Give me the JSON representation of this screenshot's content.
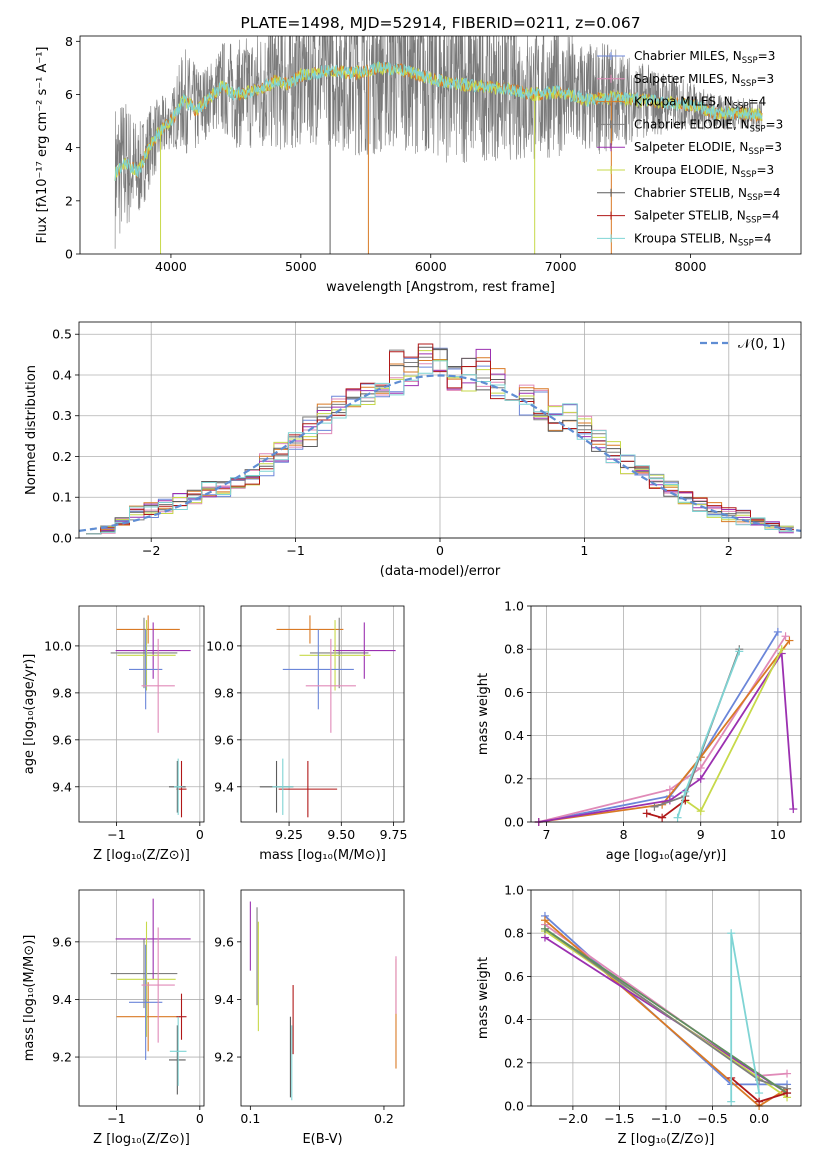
{
  "chart_data": [
    {
      "type": "line",
      "title": "PLATE=1498, MJD=52914, FIBERID=0211, z=0.067",
      "xlabel": "wavelength [Angstrom, rest frame]",
      "ylabel": "Flux [fλ10⁻¹⁷ erg cm⁻² s⁻¹ A⁻¹]",
      "xlim": [
        3300,
        8850
      ],
      "ylim": [
        0,
        8.2
      ],
      "xticks": [
        "4000",
        "5000",
        "6000",
        "7000",
        "8000"
      ],
      "yticks": [
        "0",
        "2",
        "4",
        "6",
        "8"
      ],
      "grid": false,
      "legend_position": "top-right",
      "legend": [
        "Chabrier MILES, N_SSP=3",
        "Salpeter MILES, N_SSP=3",
        "Kroupa MILES, N_SSP=4",
        "Chabrier ELODIE, N_SSP=3",
        "Salpeter ELODIE, N_SSP=3",
        "Kroupa ELODIE, N_SSP=3",
        "Chabrier STELIB, N_SSP=4",
        "Salpeter STELIB, N_SSP=4",
        "Kroupa STELIB, N_SSP=4"
      ],
      "data": {
        "x": [
          3570,
          3650,
          3750,
          3850,
          3950,
          4000,
          4100,
          4200,
          4300,
          4400,
          4500,
          4600,
          4700,
          4800,
          4900,
          5000,
          5200,
          5400,
          5600,
          5800,
          6000,
          6200,
          6400,
          6600,
          6800,
          7000,
          7200,
          7400,
          7600,
          7800,
          8000,
          8200,
          8400,
          8550
        ],
        "model": [
          3.0,
          3.4,
          3.1,
          4.2,
          4.8,
          5.0,
          5.8,
          5.4,
          5.9,
          6.3,
          6.0,
          6.1,
          6.2,
          6.5,
          6.4,
          6.7,
          6.9,
          6.8,
          7.0,
          6.9,
          6.6,
          6.4,
          6.3,
          6.2,
          6.0,
          6.1,
          5.8,
          5.9,
          5.8,
          5.7,
          5.6,
          5.3,
          5.3,
          5.2
        ],
        "observed_band": [
          2.8,
          2.6,
          1.8,
          1.5,
          1.2,
          1.0,
          2.0,
          1.7,
          1.3,
          1.8,
          2.0,
          2.2,
          2.4,
          2.6,
          2.7,
          2.6,
          2.8,
          3.1,
          3.3,
          3.0,
          3.0,
          3.1,
          2.8,
          2.7,
          2.6,
          2.4,
          2.2,
          2.0,
          1.5,
          1.2,
          0.9,
          0.7,
          0.6,
          0.6
        ]
      }
    },
    {
      "type": "line",
      "xlabel": "(data-model)/error",
      "ylabel": "Normed distribution",
      "xlim": [
        -2.5,
        2.5
      ],
      "ylim": [
        0,
        0.53
      ],
      "xticks": [
        "−2",
        "−1",
        "0",
        "1",
        "2"
      ],
      "yticks": [
        "0.0",
        "0.1",
        "0.2",
        "0.3",
        "0.4",
        "0.5"
      ],
      "grid": true,
      "legend_position": "top-right",
      "legend": [
        "𝒩(0, 1)"
      ],
      "data": {
        "bin_centers": [
          -2.4,
          -2.3,
          -2.2,
          -2.1,
          -2.0,
          -1.9,
          -1.8,
          -1.7,
          -1.6,
          -1.5,
          -1.4,
          -1.3,
          -1.2,
          -1.1,
          -1.0,
          -0.9,
          -0.8,
          -0.7,
          -0.6,
          -0.5,
          -0.4,
          -0.3,
          -0.2,
          -0.1,
          0.0,
          0.1,
          0.2,
          0.3,
          0.4,
          0.5,
          0.6,
          0.7,
          0.8,
          0.9,
          1.0,
          1.1,
          1.2,
          1.3,
          1.4,
          1.5,
          1.6,
          1.7,
          1.8,
          1.9,
          2.0,
          2.1,
          2.2,
          2.3,
          2.4
        ],
        "hist": [
          0.02,
          0.02,
          0.04,
          0.06,
          0.07,
          0.08,
          0.09,
          0.1,
          0.12,
          0.12,
          0.13,
          0.15,
          0.18,
          0.21,
          0.23,
          0.26,
          0.29,
          0.32,
          0.34,
          0.35,
          0.37,
          0.4,
          0.41,
          0.44,
          0.43,
          0.39,
          0.4,
          0.41,
          0.38,
          0.37,
          0.34,
          0.33,
          0.3,
          0.29,
          0.27,
          0.24,
          0.21,
          0.18,
          0.16,
          0.14,
          0.12,
          0.1,
          0.08,
          0.07,
          0.06,
          0.05,
          0.04,
          0.03,
          0.02
        ],
        "hist_spread": [
          0.01,
          0.01,
          0.01,
          0.02,
          0.02,
          0.02,
          0.02,
          0.02,
          0.02,
          0.02,
          0.02,
          0.02,
          0.03,
          0.03,
          0.04,
          0.04,
          0.04,
          0.04,
          0.03,
          0.03,
          0.04,
          0.07,
          0.04,
          0.04,
          0.04,
          0.04,
          0.05,
          0.06,
          0.04,
          0.04,
          0.04,
          0.04,
          0.04,
          0.04,
          0.03,
          0.03,
          0.03,
          0.03,
          0.02,
          0.02,
          0.02,
          0.02,
          0.02,
          0.02,
          0.02,
          0.02,
          0.01,
          0.01,
          0.01
        ],
        "normal": {
          "mu": 0,
          "sigma": 1
        }
      }
    },
    {
      "type": "scatter",
      "xlabel": "Z [log₁₀(Z/Z⊙)]",
      "ylabel": "age  [log₁₀(age/yr)]",
      "xlim": [
        -1.45,
        0.05
      ],
      "ylim": [
        9.25,
        10.17
      ],
      "xticks": [
        "−1",
        "0"
      ],
      "yticks": [
        "9.4",
        "9.6",
        "9.8",
        "10.0"
      ],
      "grid": true,
      "points": [
        {
          "x": -0.62,
          "y": 10.07,
          "xerr": 0.38,
          "yerr": 0.06,
          "color": "#d97a25"
        },
        {
          "x": -0.67,
          "y": 9.97,
          "xerr": 0.4,
          "yerr": 0.15,
          "color": "#7f7f7f"
        },
        {
          "x": -0.56,
          "y": 9.98,
          "xerr": 0.45,
          "yerr": 0.12,
          "color": "#9b30b0"
        },
        {
          "x": -0.64,
          "y": 9.96,
          "xerr": 0.35,
          "yerr": 0.15,
          "color": "#c7d94a"
        },
        {
          "x": -0.65,
          "y": 9.9,
          "xerr": 0.2,
          "yerr": 0.17,
          "color": "#6b86d9"
        },
        {
          "x": -0.5,
          "y": 9.83,
          "xerr": 0.2,
          "yerr": 0.2,
          "color": "#e08ab8"
        },
        {
          "x": -0.22,
          "y": 9.39,
          "xerr": 0.06,
          "yerr": 0.12,
          "color": "#b01818"
        },
        {
          "x": -0.27,
          "y": 9.4,
          "xerr": 0.1,
          "yerr": 0.11,
          "color": "#5c5c5c"
        },
        {
          "x": -0.26,
          "y": 9.4,
          "xerr": 0.05,
          "yerr": 0.12,
          "color": "#7fd4d4"
        }
      ]
    },
    {
      "type": "scatter",
      "xlabel": "mass [log₁₀(M/M⊙)]",
      "xlim": [
        9.02,
        9.8
      ],
      "ylim": [
        9.25,
        10.17
      ],
      "xticks": [
        "9.25",
        "9.50",
        "9.75"
      ],
      "yticks": [
        "9.4",
        "9.6",
        "9.8",
        "10.0"
      ],
      "grid": true,
      "points": [
        {
          "x": 9.35,
          "y": 10.07,
          "xerr": 0.16,
          "yerr": 0.06,
          "color": "#d97a25"
        },
        {
          "x": 9.49,
          "y": 9.97,
          "xerr": 0.14,
          "yerr": 0.15,
          "color": "#7f7f7f"
        },
        {
          "x": 9.61,
          "y": 9.98,
          "xerr": 0.15,
          "yerr": 0.12,
          "color": "#9b30b0"
        },
        {
          "x": 9.47,
          "y": 9.96,
          "xerr": 0.17,
          "yerr": 0.15,
          "color": "#c7d94a"
        },
        {
          "x": 9.39,
          "y": 9.9,
          "xerr": 0.17,
          "yerr": 0.17,
          "color": "#6b86d9"
        },
        {
          "x": 9.45,
          "y": 9.83,
          "xerr": 0.12,
          "yerr": 0.2,
          "color": "#e08ab8"
        },
        {
          "x": 9.34,
          "y": 9.39,
          "xerr": 0.14,
          "yerr": 0.12,
          "color": "#b01818"
        },
        {
          "x": 9.19,
          "y": 9.4,
          "xerr": 0.08,
          "yerr": 0.11,
          "color": "#5c5c5c"
        },
        {
          "x": 9.22,
          "y": 9.4,
          "xerr": 0.05,
          "yerr": 0.12,
          "color": "#7fd4d4"
        }
      ]
    },
    {
      "type": "line",
      "xlabel": "age  [log₁₀(age/yr)]",
      "ylabel": "mass weight",
      "xlim": [
        6.8,
        10.3
      ],
      "ylim": [
        0,
        1.0
      ],
      "xticks": [
        "7",
        "8",
        "9",
        "10"
      ],
      "yticks": [
        "0.0",
        "0.2",
        "0.4",
        "0.6",
        "0.8",
        "1.0"
      ],
      "grid": true,
      "series": [
        {
          "color": "#6b86d9",
          "x": [
            6.9,
            8.6,
            9.0,
            10.0
          ],
          "y": [
            0.0,
            0.12,
            0.3,
            0.88
          ]
        },
        {
          "color": "#e08ab8",
          "x": [
            6.9,
            8.6,
            9.0,
            10.1
          ],
          "y": [
            0.0,
            0.15,
            0.25,
            0.86
          ]
        },
        {
          "color": "#d97a25",
          "x": [
            6.9,
            8.5,
            9.0,
            10.15
          ],
          "y": [
            0.0,
            0.08,
            0.3,
            0.84
          ]
        },
        {
          "color": "#9b30b0",
          "x": [
            6.9,
            8.6,
            9.0,
            10.05,
            10.2
          ],
          "y": [
            0.0,
            0.1,
            0.2,
            0.78,
            0.06
          ]
        },
        {
          "color": "#c7d94a",
          "x": [
            8.8,
            9.0,
            10.05
          ],
          "y": [
            0.1,
            0.05,
            0.8
          ]
        },
        {
          "color": "#7f7f7f",
          "x": [
            8.4,
            8.8,
            9.5
          ],
          "y": [
            0.07,
            0.12,
            0.8
          ]
        },
        {
          "color": "#b01818",
          "x": [
            8.3,
            8.5,
            8.8
          ],
          "y": [
            0.04,
            0.02,
            0.1
          ]
        },
        {
          "color": "#7fd4d4",
          "x": [
            8.7,
            8.8,
            9.5
          ],
          "y": [
            0.02,
            0.14,
            0.79
          ]
        }
      ]
    },
    {
      "type": "scatter",
      "xlabel": "Z [log₁₀(Z/Z⊙)]",
      "ylabel": "mass [log₁₀(M/M⊙)]",
      "xlim": [
        -1.45,
        0.05
      ],
      "ylim": [
        9.03,
        9.78
      ],
      "xticks": [
        "−1",
        "0"
      ],
      "yticks": [
        "9.2",
        "9.4",
        "9.6"
      ],
      "grid": true,
      "points": [
        {
          "x": -0.62,
          "y": 9.34,
          "xerr": 0.38,
          "yerr": 0.12,
          "color": "#d97a25"
        },
        {
          "x": -0.67,
          "y": 9.49,
          "xerr": 0.4,
          "yerr": 0.12,
          "color": "#7f7f7f"
        },
        {
          "x": -0.56,
          "y": 9.61,
          "xerr": 0.45,
          "yerr": 0.14,
          "color": "#9b30b0"
        },
        {
          "x": -0.64,
          "y": 9.47,
          "xerr": 0.35,
          "yerr": 0.2,
          "color": "#c7d94a"
        },
        {
          "x": -0.65,
          "y": 9.39,
          "xerr": 0.2,
          "yerr": 0.2,
          "color": "#6b86d9"
        },
        {
          "x": -0.5,
          "y": 9.45,
          "xerr": 0.2,
          "yerr": 0.2,
          "color": "#e08ab8"
        },
        {
          "x": -0.22,
          "y": 9.34,
          "xerr": 0.06,
          "yerr": 0.08,
          "color": "#b01818"
        },
        {
          "x": -0.27,
          "y": 9.19,
          "xerr": 0.1,
          "yerr": 0.12,
          "color": "#5c5c5c"
        },
        {
          "x": -0.26,
          "y": 9.22,
          "xerr": 0.1,
          "yerr": 0.12,
          "color": "#7fd4d4"
        }
      ]
    },
    {
      "type": "scatter",
      "xlabel": "E(B-V)",
      "xlim": [
        0.093,
        0.215
      ],
      "ylim": [
        9.03,
        9.78
      ],
      "xticks": [
        "0.1",
        "0.2"
      ],
      "yticks": [
        "9.2",
        "9.4",
        "9.6"
      ],
      "grid": false,
      "points": [
        {
          "x": 0.209,
          "y": 9.35,
          "yerr": 0.19,
          "color": "#d97a25"
        },
        {
          "x": 0.209,
          "y": 9.45,
          "yerr": 0.1,
          "color": "#e08ab8"
        },
        {
          "x": 0.1,
          "y": 9.62,
          "yerr": 0.12,
          "color": "#9b30b0"
        },
        {
          "x": 0.105,
          "y": 9.55,
          "yerr": 0.17,
          "color": "#7f7f7f"
        },
        {
          "x": 0.106,
          "y": 9.48,
          "yerr": 0.19,
          "color": "#c7d94a"
        },
        {
          "x": 0.13,
          "y": 9.2,
          "yerr": 0.14,
          "color": "#5c5c5c"
        },
        {
          "x": 0.132,
          "y": 9.33,
          "yerr": 0.12,
          "color": "#b01818"
        },
        {
          "x": 0.131,
          "y": 9.18,
          "yerr": 0.13,
          "color": "#7fd4d4"
        }
      ]
    },
    {
      "type": "line",
      "xlabel": "Z [log₁₀(Z/Z⊙)]",
      "ylabel": "mass weight",
      "xlim": [
        -2.45,
        0.45
      ],
      "ylim": [
        0,
        1.0
      ],
      "xticks": [
        "−2.0",
        "−1.5",
        "−1.0",
        "−0.5",
        "0.0"
      ],
      "yticks": [
        "0.0",
        "0.2",
        "0.4",
        "0.6",
        "0.8",
        "1.0"
      ],
      "grid": true,
      "series": [
        {
          "color": "#6b86d9",
          "x": [
            -2.3,
            -0.3,
            0.3
          ],
          "y": [
            0.88,
            0.1,
            0.1
          ]
        },
        {
          "color": "#e08ab8",
          "x": [
            -2.3,
            0.0,
            0.3
          ],
          "y": [
            0.84,
            0.14,
            0.15
          ]
        },
        {
          "color": "#d97a25",
          "x": [
            -2.3,
            0.0,
            0.3
          ],
          "y": [
            0.86,
            0.0,
            0.08
          ]
        },
        {
          "color": "#9b30b0",
          "x": [
            -2.3,
            0.3
          ],
          "y": [
            0.78,
            0.06
          ]
        },
        {
          "color": "#c7d94a",
          "x": [
            -2.3,
            0.3
          ],
          "y": [
            0.81,
            0.04
          ]
        },
        {
          "color": "#7f7f7f",
          "x": [
            -2.3,
            0.0,
            0.3
          ],
          "y": [
            0.82,
            0.12,
            0.08
          ]
        },
        {
          "color": "#5f8f5f",
          "x": [
            -2.3,
            0.3
          ],
          "y": [
            0.82,
            0.06
          ]
        },
        {
          "color": "#b01818",
          "x": [
            -0.3,
            0.0,
            0.3
          ],
          "y": [
            0.13,
            0.02,
            0.06
          ]
        },
        {
          "color": "#7fd4d4",
          "x": [
            -0.3,
            -0.3,
            0.0
          ],
          "y": [
            0.02,
            0.8,
            0.06
          ]
        }
      ]
    }
  ]
}
